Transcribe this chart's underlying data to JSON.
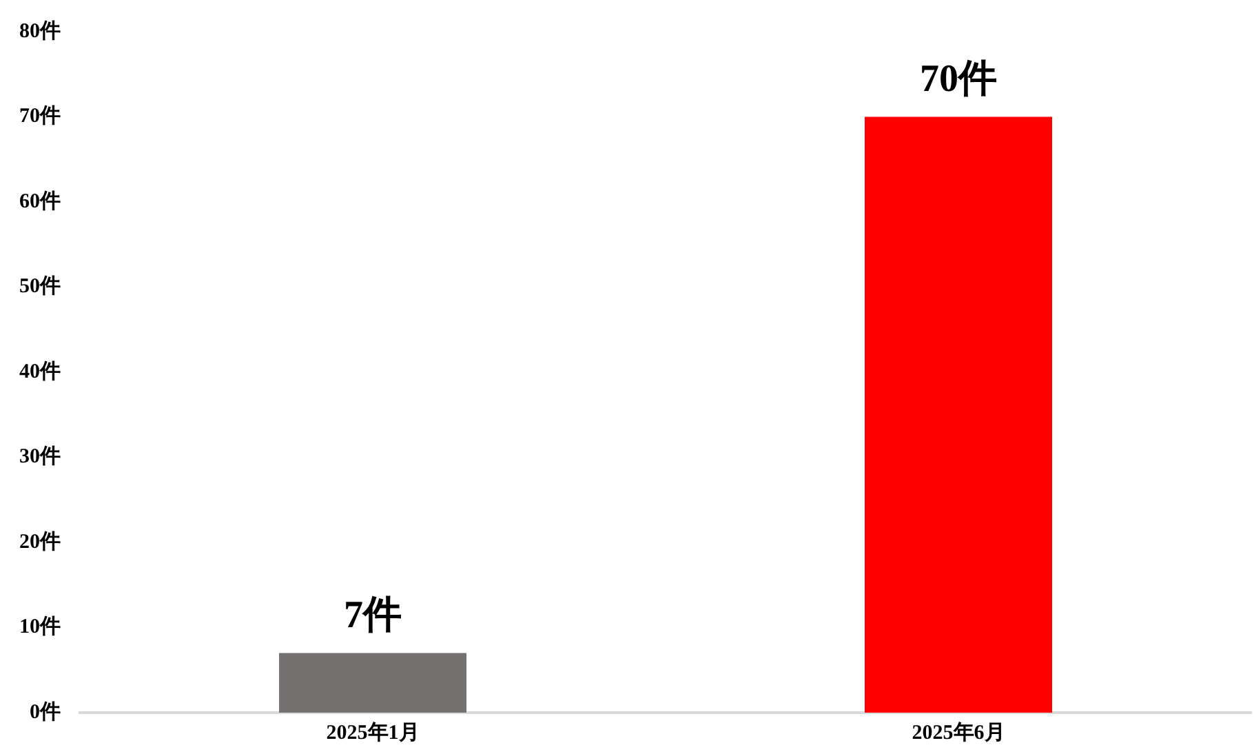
{
  "chart_data": {
    "type": "bar",
    "categories": [
      "2025年1月",
      "2025年6月"
    ],
    "values": [
      7,
      70
    ],
    "colors": [
      "#767171",
      "#ff0000"
    ],
    "value_labels": [
      "7件",
      "70件"
    ],
    "ylim": [
      0,
      80
    ],
    "yticks": [
      {
        "value": 0,
        "label": "0件"
      },
      {
        "value": 10,
        "label": "10件"
      },
      {
        "value": 20,
        "label": "20件"
      },
      {
        "value": 30,
        "label": "30件"
      },
      {
        "value": 40,
        "label": "40件"
      },
      {
        "value": 50,
        "label": "50件"
      },
      {
        "value": 60,
        "label": "60件"
      },
      {
        "value": 70,
        "label": "70件"
      },
      {
        "value": 80,
        "label": "80件"
      }
    ],
    "grid": false,
    "legend": false
  }
}
